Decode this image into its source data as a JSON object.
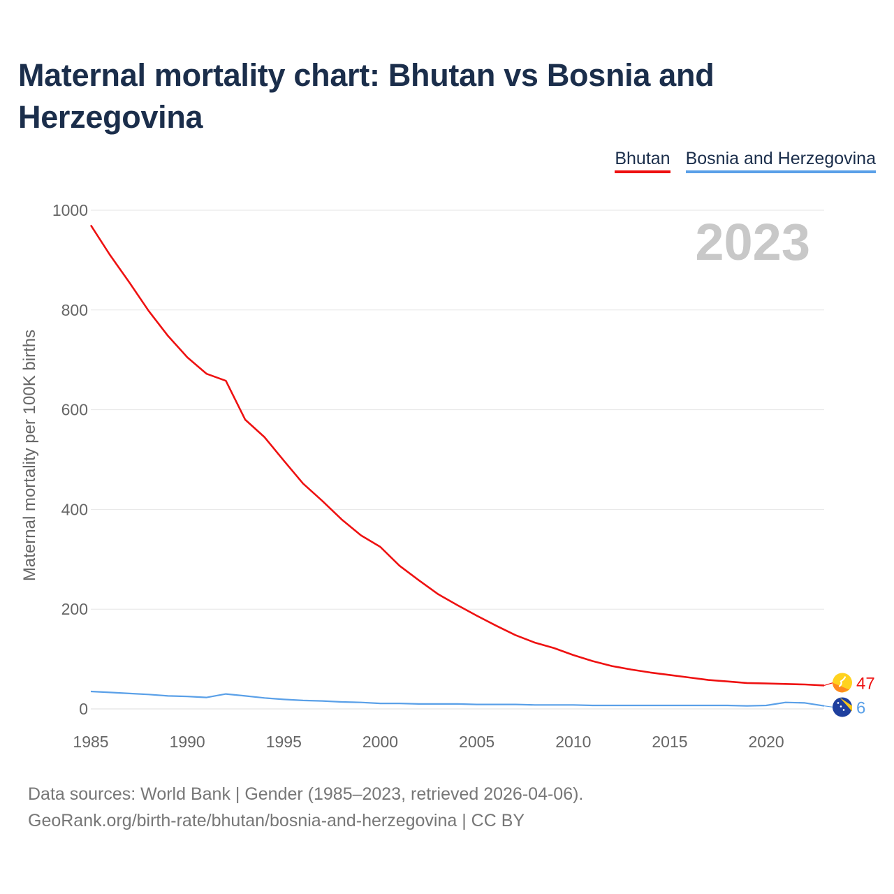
{
  "title": "Maternal mortality chart: Bhutan vs Bosnia and Herzegovina",
  "legend": {
    "bhutan": "Bhutan",
    "bosnia": "Bosnia and Herzegovina"
  },
  "colors": {
    "bhutan": "#ee1111",
    "bosnia": "#5aa0e8",
    "title": "#1b2e4b",
    "axis_text": "#666666",
    "grid": "#e6e6e6",
    "year_label": "#c8c8c8"
  },
  "sources": {
    "line1": "Data sources: World Bank | Gender (1985–2023, retrieved 2026-04-06).",
    "line2": "GeoRank.org/birth-rate/bhutan/bosnia-and-herzegovina | CC BY"
  },
  "chart_data": {
    "type": "line",
    "title": "Maternal mortality chart: Bhutan vs Bosnia and Herzegovina",
    "xlabel": "",
    "ylabel": "Maternal mortality per 100K births",
    "xlim": [
      1985,
      2023
    ],
    "ylim": [
      0,
      1000
    ],
    "xticks": [
      1985,
      1990,
      1995,
      2000,
      2005,
      2010,
      2015,
      2020
    ],
    "yticks": [
      0,
      200,
      400,
      600,
      800,
      1000
    ],
    "grid": true,
    "legend_position": "top-right",
    "year_label": "2023",
    "x": [
      1985,
      1986,
      1987,
      1988,
      1989,
      1990,
      1991,
      1992,
      1993,
      1994,
      1995,
      1996,
      1997,
      1998,
      1999,
      2000,
      2001,
      2002,
      2003,
      2004,
      2005,
      2006,
      2007,
      2008,
      2009,
      2010,
      2011,
      2012,
      2013,
      2014,
      2015,
      2016,
      2017,
      2018,
      2019,
      2020,
      2021,
      2022,
      2023
    ],
    "series": [
      {
        "name": "Bhutan",
        "end_label": "47",
        "values": [
          970,
          910,
          855,
          798,
          748,
          705,
          672,
          658,
          580,
          545,
          498,
          452,
          417,
          380,
          348,
          325,
          287,
          258,
          230,
          208,
          187,
          167,
          148,
          133,
          122,
          108,
          96,
          86,
          79,
          73,
          68,
          63,
          58,
          55,
          52,
          51,
          50,
          49,
          47
        ]
      },
      {
        "name": "Bosnia and Herzegovina",
        "end_label": "6",
        "values": [
          35,
          33,
          31,
          29,
          26,
          25,
          23,
          30,
          26,
          22,
          19,
          17,
          16,
          14,
          13,
          11,
          11,
          10,
          10,
          10,
          9,
          9,
          9,
          8,
          8,
          8,
          7,
          7,
          7,
          7,
          7,
          7,
          7,
          7,
          6,
          7,
          13,
          12,
          6
        ]
      }
    ]
  }
}
